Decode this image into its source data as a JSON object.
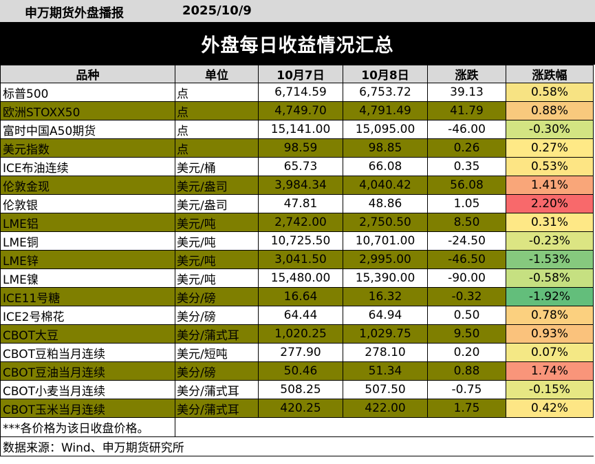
{
  "header": {
    "publisher": "申万期货外盘播报",
    "date": "2025/10/9",
    "title": "外盘每日收益情况汇总"
  },
  "table": {
    "columns": [
      "品种",
      "单位",
      "10月7日",
      "10月8日",
      "涨跌",
      "涨跌幅"
    ],
    "rows": [
      {
        "name": "标普500",
        "unit": "点",
        "d1": "6,714.59",
        "d2": "6,753.72",
        "chg": "39.13",
        "pct": "0.58%",
        "pct_color": "#f7e383"
      },
      {
        "name": "欧洲STOXX50",
        "unit": "点",
        "d1": "4,749.70",
        "d2": "4,791.49",
        "chg": "41.79",
        "pct": "0.88%",
        "pct_color": "#f8c97d"
      },
      {
        "name": "富时中国A50期货",
        "unit": "点",
        "d1": "15,141.00",
        "d2": "15,095.00",
        "chg": "-46.00",
        "pct": "-0.30%",
        "pct_color": "#d3e482"
      },
      {
        "name": "美元指数",
        "unit": "点",
        "d1": "98.59",
        "d2": "98.85",
        "chg": "0.26",
        "pct": "0.27%",
        "pct_color": "#fee986"
      },
      {
        "name": "ICE布油连续",
        "unit": "美元/桶",
        "d1": "65.73",
        "d2": "66.08",
        "chg": "0.35",
        "pct": "0.53%",
        "pct_color": "#fde584"
      },
      {
        "name": "伦敦金现",
        "unit": "美元/盎司",
        "d1": "3,984.34",
        "d2": "4,040.42",
        "chg": "56.08",
        "pct": "1.41%",
        "pct_color": "#f9a679"
      },
      {
        "name": "伦敦银",
        "unit": "美元/盎司",
        "d1": "47.81",
        "d2": "48.86",
        "chg": "1.05",
        "pct": "2.20%",
        "pct_color": "#f8696b"
      },
      {
        "name": "LME铝",
        "unit": "美元/吨",
        "d1": "2,742.00",
        "d2": "2,750.50",
        "chg": "8.50",
        "pct": "0.31%",
        "pct_color": "#fee886"
      },
      {
        "name": "LME铜",
        "unit": "美元/吨",
        "d1": "10,725.50",
        "d2": "10,701.00",
        "chg": "-24.50",
        "pct": "-0.23%",
        "pct_color": "#dce583"
      },
      {
        "name": "LME锌",
        "unit": "美元/吨",
        "d1": "3,041.50",
        "d2": "2,995.00",
        "chg": "-46.50",
        "pct": "-1.53%",
        "pct_color": "#86c97e"
      },
      {
        "name": "LME镍",
        "unit": "美元/吨",
        "d1": "15,480.00",
        "d2": "15,390.00",
        "chg": "-90.00",
        "pct": "-0.58%",
        "pct_color": "#c6e081"
      },
      {
        "name": "ICE11号糖",
        "unit": "美分/磅",
        "d1": "16.64",
        "d2": "16.32",
        "chg": "-0.32",
        "pct": "-1.92%",
        "pct_color": "#63be7b"
      },
      {
        "name": "ICE2号棉花",
        "unit": "美分/磅",
        "d1": "64.44",
        "d2": "64.94",
        "chg": "0.50",
        "pct": "0.78%",
        "pct_color": "#fbd07f"
      },
      {
        "name": "CBOT大豆",
        "unit": "美分/蒲式耳",
        "d1": "1,020.25",
        "d2": "1,029.75",
        "chg": "9.50",
        "pct": "0.93%",
        "pct_color": "#fac27c"
      },
      {
        "name": "CBOT豆粕当月连续",
        "unit": "美元/短吨",
        "d1": "277.90",
        "d2": "278.10",
        "chg": "0.20",
        "pct": "0.07%",
        "pct_color": "#f4e885"
      },
      {
        "name": "CBOT豆油当月连续",
        "unit": "美分/磅",
        "d1": "50.46",
        "d2": "51.34",
        "chg": "0.88",
        "pct": "1.74%",
        "pct_color": "#f9957a"
      },
      {
        "name": "CBOT小麦当月连续",
        "unit": "美分/蒲式耳",
        "d1": "508.25",
        "d2": "507.50",
        "chg": "-0.75",
        "pct": "-0.15%",
        "pct_color": "#e6e783"
      },
      {
        "name": "CBOT玉米当月连续",
        "unit": "美分/蒲式耳",
        "d1": "420.25",
        "d2": "422.00",
        "chg": "1.75",
        "pct": "0.42%",
        "pct_color": "#fde685"
      }
    ],
    "note": "***各价格为该日收盘价格。",
    "source": "数据来源：Wind、申万期货研究所"
  }
}
